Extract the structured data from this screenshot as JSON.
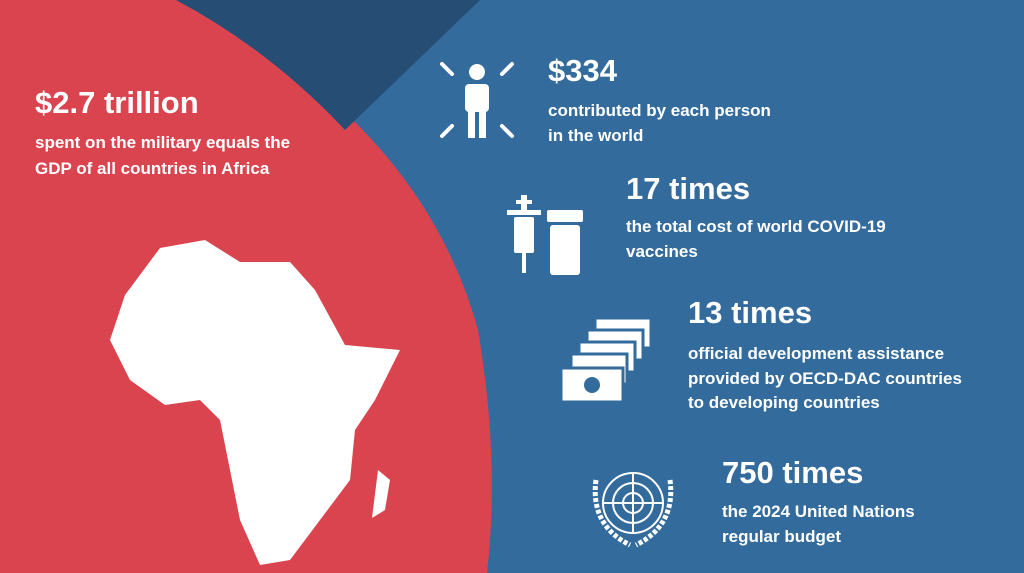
{
  "headline": {
    "title": "$2.7 trillion",
    "lines": [
      "spent on the military equals the",
      "GDP of all countries in Africa"
    ]
  },
  "items": [
    {
      "title": "$334",
      "lines": [
        "contributed by each person",
        "in the world"
      ]
    },
    {
      "title": "17 times",
      "lines": [
        "the total cost of world COVID-19",
        "vaccines"
      ]
    },
    {
      "title": "13 times",
      "lines": [
        "official development assistance",
        "provided by OECD-DAC countries",
        "to developing countries"
      ]
    },
    {
      "title": "750 times",
      "lines": [
        "the 2024 United Nations",
        "regular budget"
      ]
    }
  ]
}
